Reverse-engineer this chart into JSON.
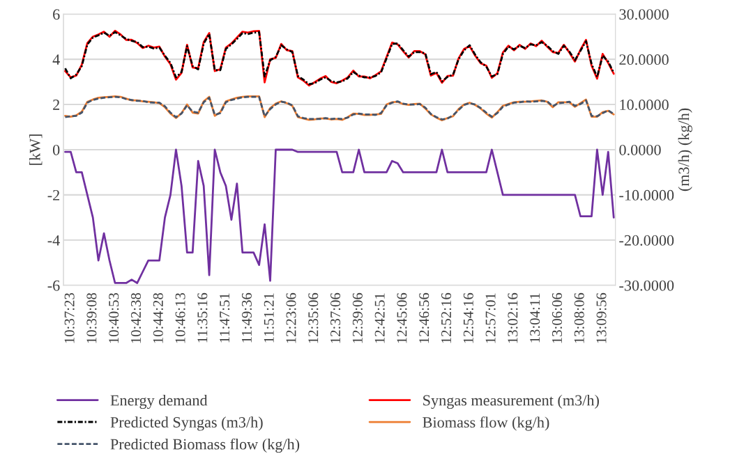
{
  "chart_data": {
    "type": "line",
    "ylabel": "[kW]",
    "y2label": "(m3/h) (kg/h)",
    "categories": [
      null,
      "10:37:23",
      null,
      null,
      null,
      "10:39:08",
      null,
      null,
      null,
      "10:40:53",
      null,
      null,
      null,
      "10:42:38",
      null,
      null,
      null,
      "10:44:28",
      null,
      null,
      null,
      "10:46:13",
      null,
      null,
      null,
      "11:35:16",
      null,
      null,
      null,
      "11:47:51",
      null,
      null,
      null,
      "11:49:36",
      null,
      null,
      null,
      "11:51:21",
      null,
      null,
      null,
      "12:23:06",
      null,
      null,
      null,
      "12:35:06",
      null,
      null,
      null,
      "12:37:06",
      null,
      null,
      null,
      "12:39:06",
      null,
      null,
      null,
      "12:42:51",
      null,
      null,
      null,
      "12:45:06",
      null,
      null,
      null,
      "12:46:56",
      null,
      null,
      null,
      "12:52:16",
      null,
      null,
      null,
      "12:54:16",
      null,
      null,
      null,
      "12:57:01",
      null,
      null,
      null,
      "13:02:16",
      null,
      null,
      null,
      "13:04:11",
      null,
      null,
      null,
      "13:06:06",
      null,
      null,
      null,
      "13:08:06",
      null,
      null,
      null,
      "13:09:56",
      null,
      null
    ],
    "ylim": [
      -6,
      6
    ],
    "yticks": [
      -6,
      -4,
      -2,
      0,
      2,
      4,
      6
    ],
    "y2lim": [
      -30,
      30
    ],
    "y2ticks": [
      {
        "value": -30,
        "label": "-30.0000"
      },
      {
        "value": -20,
        "label": "-20.0000"
      },
      {
        "value": -10,
        "label": "-10.0000"
      },
      {
        "value": 0,
        "label": "0.0000"
      },
      {
        "value": 10,
        "label": "10.0000"
      },
      {
        "value": 20,
        "label": "20.0000"
      },
      {
        "value": 30,
        "label": "30.0000"
      }
    ],
    "grid": "y",
    "legend": "bottom",
    "series": [
      {
        "name": "Energy demand",
        "color": "#7030a0",
        "line_style": "solid",
        "values": [
          -0.1,
          -0.1,
          -1.0,
          -1.0,
          -2.0,
          -3.0,
          -4.9,
          -3.7,
          -4.9,
          -5.9,
          -5.9,
          -5.9,
          -5.75,
          -5.9,
          -5.4,
          -4.9,
          -4.9,
          -4.9,
          -3.0,
          -2.0,
          0.0,
          -1.6,
          -4.55,
          -4.55,
          -0.5,
          -1.6,
          -5.55,
          0.0,
          -1.0,
          -1.6,
          -3.1,
          -1.5,
          -4.55,
          -4.55,
          -4.55,
          -5.1,
          -3.3,
          -5.8,
          0.0,
          0.0,
          0.0,
          0.0,
          -0.1,
          -0.1,
          -0.1,
          -0.1,
          -0.1,
          -0.1,
          -0.1,
          -0.1,
          -1.0,
          -1.0,
          -1.0,
          0.0,
          -1.0,
          -1.0,
          -1.0,
          -1.0,
          -1.0,
          -0.5,
          -0.6,
          -1.0,
          -1.0,
          -1.0,
          -1.0,
          -1.0,
          -1.0,
          -1.0,
          0.0,
          -1.0,
          -1.0,
          -1.0,
          -1.0,
          -1.0,
          -1.0,
          -1.0,
          -1.0,
          0.0,
          -1.0,
          -2.0,
          -2.0,
          -2.0,
          -2.0,
          -2.0,
          -2.0,
          -2.0,
          -2.0,
          -2.0,
          -2.0,
          -2.0,
          -2.0,
          -2.0,
          -2.0,
          -2.95,
          -2.95,
          -2.95,
          0.0,
          -2.0,
          -0.1,
          -3.0
        ]
      },
      {
        "name": "Syngas measurement (m3/h)",
        "color": "#ff0000",
        "line_style": "solid",
        "axis": "y2",
        "values": [
          17.4,
          16.0,
          16.4,
          18.8,
          23.6,
          25.0,
          25.5,
          26.1,
          25.0,
          26.3,
          25.5,
          24.3,
          24.3,
          23.6,
          22.5,
          23.0,
          22.6,
          22.8,
          20.6,
          18.9,
          15.5,
          17.0,
          23.2,
          18.2,
          18.0,
          23.8,
          25.8,
          17.4,
          17.8,
          22.6,
          23.5,
          24.8,
          26.1,
          25.9,
          26.2,
          26.3,
          14.9,
          20.0,
          20.3,
          23.4,
          22.0,
          21.8,
          16.0,
          15.3,
          14.2,
          14.9,
          15.7,
          16.3,
          15.0,
          14.7,
          15.3,
          16.0,
          17.5,
          16.2,
          16.2,
          15.8,
          16.5,
          17.3,
          20.5,
          23.7,
          23.3,
          21.8,
          20.4,
          21.8,
          21.8,
          21.1,
          16.4,
          17.0,
          14.8,
          16.3,
          16.4,
          20.2,
          22.3,
          22.9,
          20.8,
          19.1,
          18.6,
          15.9,
          16.9,
          21.5,
          23.0,
          22.0,
          23.2,
          22.3,
          23.5,
          22.9,
          24.1,
          22.8,
          21.6,
          21.4,
          23.2,
          21.5,
          19.5,
          22.1,
          24.3,
          18.6,
          15.7,
          21.2,
          19.2,
          16.8
        ]
      },
      {
        "name": "Predicted Syngas (m3/h)",
        "color": "#000000",
        "line_style": "dashdot",
        "axis": "y2",
        "values": [
          18.0,
          15.8,
          16.6,
          18.5,
          23.3,
          24.8,
          25.3,
          25.9,
          25.2,
          26.0,
          25.3,
          24.5,
          24.1,
          23.8,
          22.7,
          22.8,
          22.4,
          22.6,
          20.8,
          19.2,
          16.0,
          17.2,
          22.9,
          18.5,
          17.8,
          23.5,
          25.6,
          17.6,
          17.6,
          22.3,
          23.3,
          24.5,
          25.8,
          25.6,
          25.9,
          26.0,
          16.2,
          19.8,
          20.5,
          23.1,
          22.2,
          21.6,
          16.3,
          15.5,
          14.5,
          14.7,
          15.5,
          16.0,
          15.2,
          14.9,
          15.1,
          15.8,
          17.2,
          16.4,
          16.0,
          16.0,
          16.3,
          17.1,
          20.2,
          23.4,
          23.5,
          22.0,
          20.6,
          21.6,
          21.6,
          21.3,
          16.7,
          17.2,
          15.1,
          16.1,
          16.6,
          20.0,
          22.0,
          23.1,
          21.0,
          19.3,
          18.4,
          16.2,
          16.7,
          21.2,
          22.8,
          22.2,
          23.0,
          22.5,
          23.3,
          23.1,
          23.8,
          23.0,
          21.8,
          21.2,
          23.0,
          21.7,
          19.8,
          21.9,
          24.0,
          19.0,
          16.1,
          20.8,
          19.5,
          17.0
        ]
      },
      {
        "name": "Biomass flow (kg/h)",
        "color": "#ed7d31",
        "line_style": "solid",
        "axis": "y2",
        "values": [
          7.5,
          7.3,
          7.6,
          8.4,
          10.6,
          11.1,
          11.5,
          11.6,
          11.7,
          11.8,
          11.7,
          11.3,
          10.9,
          10.9,
          10.7,
          10.6,
          10.5,
          10.3,
          9.4,
          8.0,
          7.0,
          8.1,
          10.0,
          8.2,
          8.0,
          10.7,
          11.7,
          7.5,
          8.3,
          10.7,
          11.1,
          11.5,
          11.7,
          11.8,
          11.8,
          11.8,
          7.2,
          9.2,
          10.2,
          10.7,
          10.3,
          9.7,
          7.2,
          6.9,
          6.6,
          6.7,
          6.9,
          6.9,
          6.7,
          6.8,
          6.6,
          7.2,
          8.0,
          7.9,
          7.7,
          7.7,
          7.8,
          7.9,
          10.0,
          10.5,
          10.6,
          10.1,
          9.9,
          10.1,
          10.2,
          9.1,
          7.8,
          7.1,
          6.5,
          7.0,
          7.4,
          9.0,
          10.0,
          10.4,
          9.9,
          9.1,
          8.0,
          7.1,
          8.3,
          9.7,
          10.1,
          10.5,
          10.6,
          10.6,
          10.7,
          10.8,
          10.9,
          10.6,
          9.4,
          10.5,
          10.5,
          10.5,
          9.5,
          10.3,
          11.1,
          7.3,
          7.3,
          8.3,
          8.6,
          7.8
        ]
      },
      {
        "name": "Predicted Biomass flow (kg/h)",
        "color": "#44546a",
        "line_style": "dashed",
        "axis": "y2",
        "values": [
          7.2,
          7.4,
          7.5,
          8.2,
          10.4,
          11.0,
          11.3,
          11.5,
          11.6,
          11.7,
          11.6,
          11.2,
          11.0,
          10.8,
          10.8,
          10.5,
          10.4,
          10.4,
          9.6,
          8.2,
          7.2,
          8.0,
          9.8,
          8.4,
          8.2,
          10.5,
          11.5,
          7.7,
          8.1,
          10.5,
          11.0,
          11.3,
          11.6,
          11.7,
          11.7,
          11.7,
          7.4,
          9.0,
          10.0,
          10.6,
          10.4,
          9.8,
          7.4,
          7.0,
          6.8,
          6.8,
          6.8,
          7.0,
          6.8,
          6.9,
          6.8,
          7.1,
          7.8,
          8.0,
          7.8,
          7.8,
          7.7,
          8.1,
          9.8,
          10.4,
          10.7,
          10.2,
          10.0,
          10.0,
          10.1,
          9.3,
          7.9,
          7.2,
          6.7,
          6.9,
          7.6,
          8.8,
          9.9,
          10.3,
          10.0,
          9.2,
          8.2,
          7.3,
          8.1,
          9.5,
          10.0,
          10.4,
          10.5,
          10.7,
          10.6,
          10.7,
          10.8,
          10.7,
          9.6,
          10.3,
          10.4,
          10.6,
          9.7,
          10.1,
          10.9,
          7.5,
          7.4,
          8.1,
          8.7,
          7.9
        ]
      }
    ]
  }
}
